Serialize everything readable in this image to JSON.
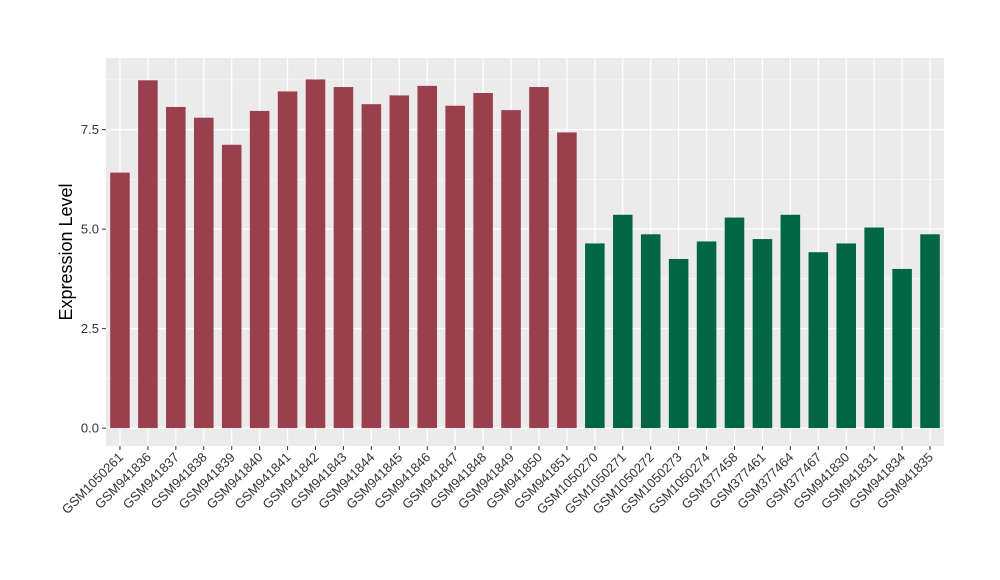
{
  "chart_data": {
    "type": "bar",
    "title": "",
    "xlabel": "",
    "ylabel": "Expression Level",
    "ylim": [
      -0.45,
      9.3
    ],
    "yticks": [
      0.0,
      2.5,
      5.0,
      7.5
    ],
    "ytick_labels": [
      "0.0",
      "2.5",
      "5.0",
      "7.5"
    ],
    "grid": true,
    "legend": "none",
    "panel_background": "#EBEBEB",
    "categories": [
      "GSM1050261",
      "GSM941836",
      "GSM941837",
      "GSM941838",
      "GSM941839",
      "GSM941840",
      "GSM941841",
      "GSM941842",
      "GSM941843",
      "GSM941844",
      "GSM941845",
      "GSM941846",
      "GSM941847",
      "GSM941848",
      "GSM941849",
      "GSM941850",
      "GSM941851",
      "GSM1050270",
      "GSM1050271",
      "GSM1050272",
      "GSM1050273",
      "GSM1050274",
      "GSM377458",
      "GSM377461",
      "GSM377464",
      "GSM377467",
      "GSM941830",
      "GSM941831",
      "GSM941834",
      "GSM941835"
    ],
    "values": [
      6.42,
      8.74,
      8.07,
      7.8,
      7.12,
      7.97,
      8.46,
      8.76,
      8.57,
      8.14,
      8.36,
      8.6,
      8.1,
      8.42,
      7.99,
      8.57,
      7.43,
      4.64,
      5.36,
      4.87,
      4.25,
      4.69,
      5.29,
      4.75,
      5.36,
      4.42,
      4.64,
      5.04,
      4.0,
      4.87
    ],
    "group_of_bar": [
      0,
      0,
      0,
      0,
      0,
      0,
      0,
      0,
      0,
      0,
      0,
      0,
      0,
      0,
      0,
      0,
      0,
      1,
      1,
      1,
      1,
      1,
      1,
      1,
      1,
      1,
      1,
      1,
      1,
      1
    ],
    "group_colors": [
      "#9A3F4E",
      "#006644"
    ]
  }
}
